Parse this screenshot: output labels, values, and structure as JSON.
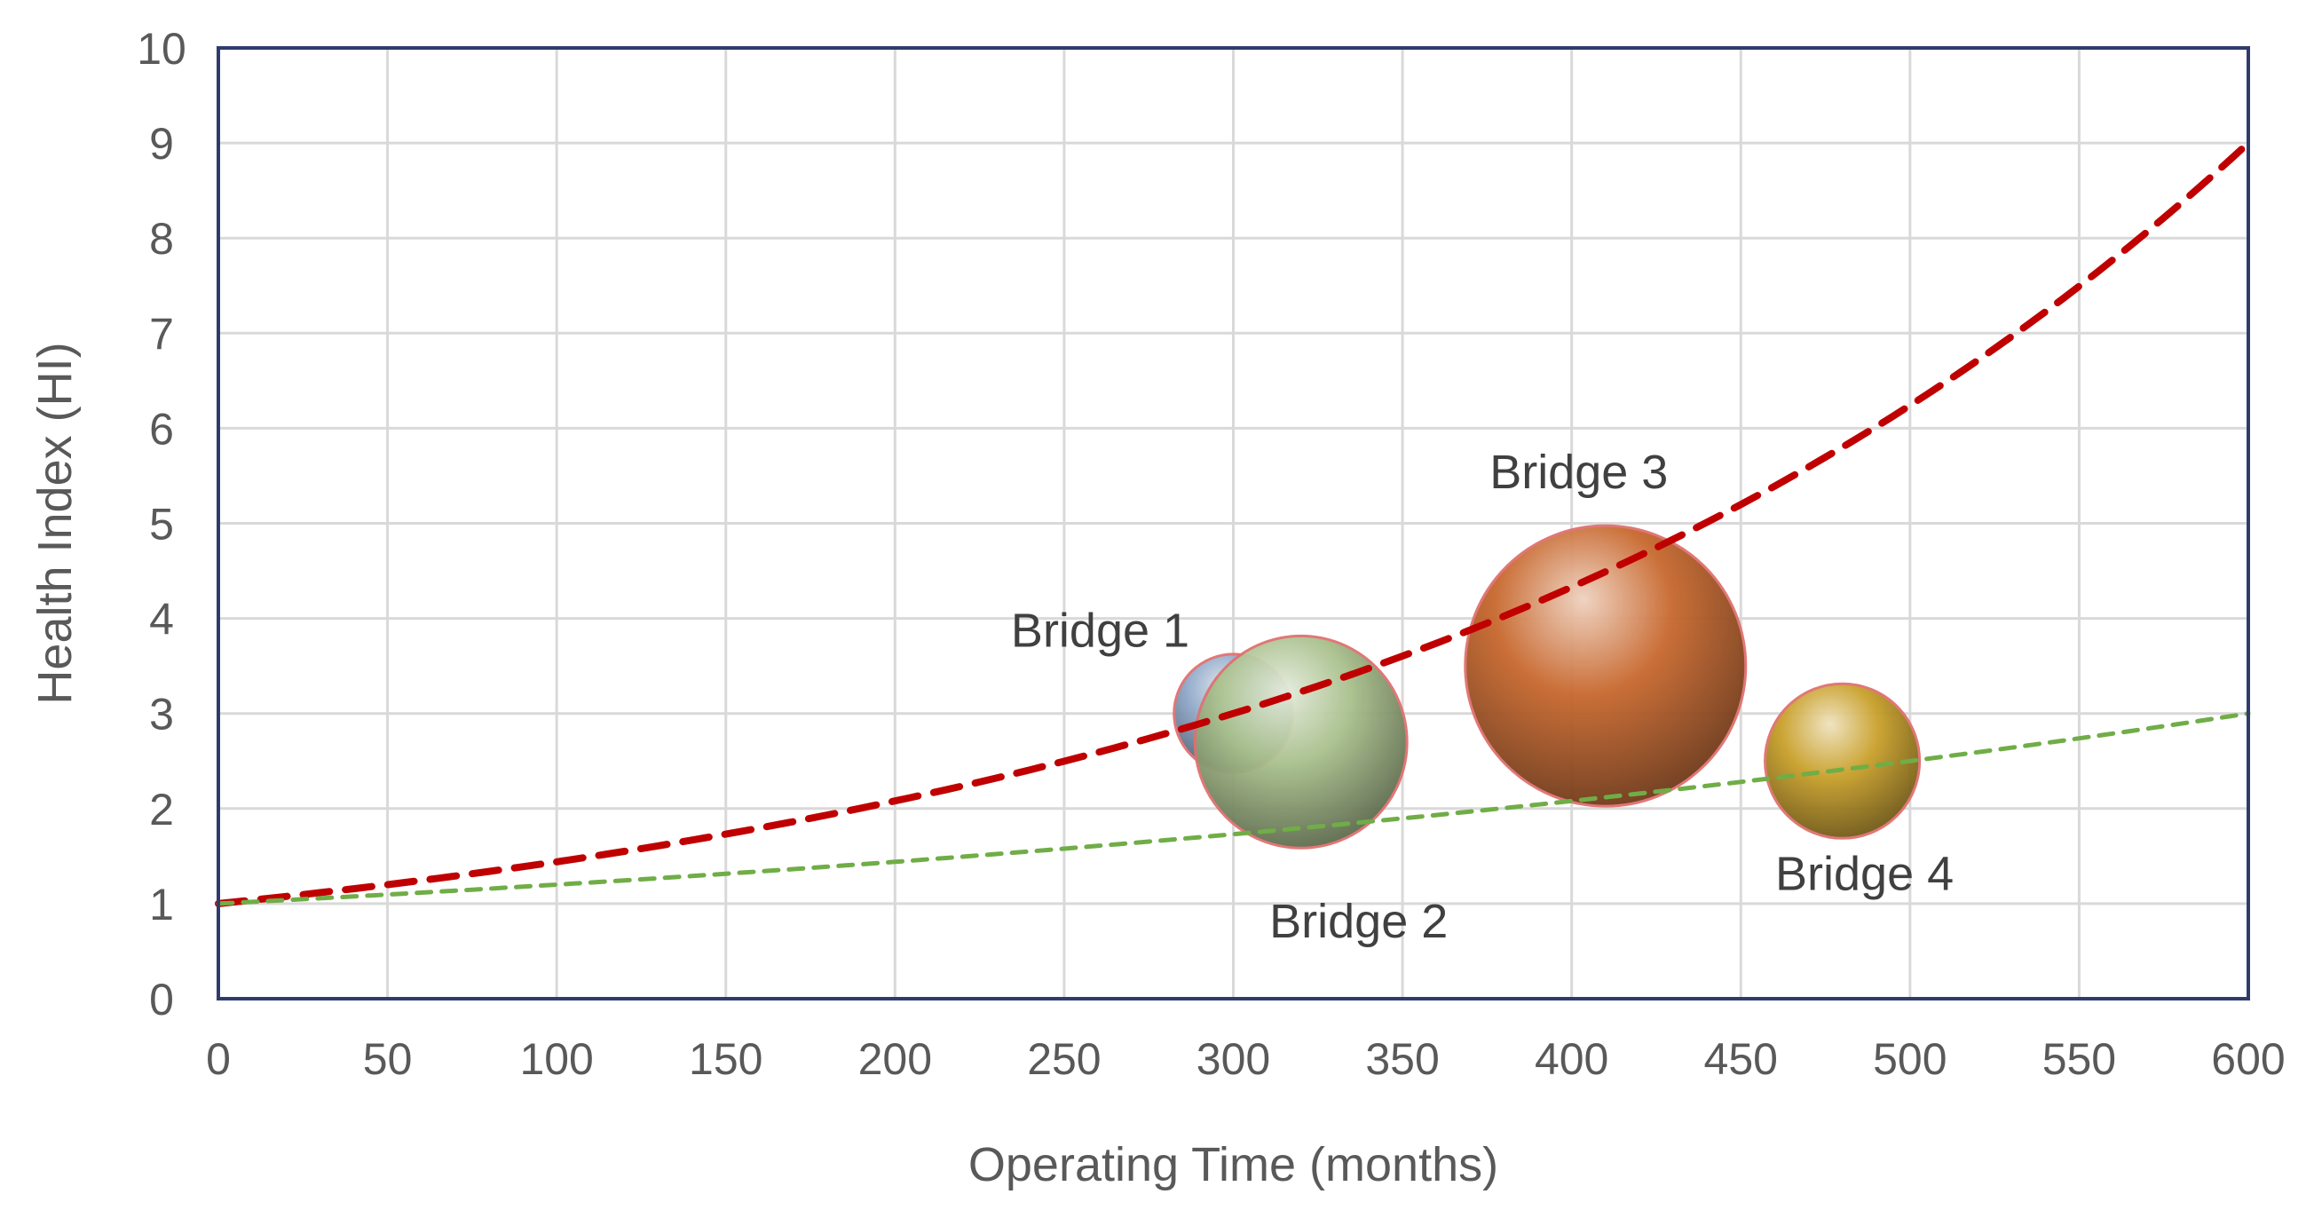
{
  "chart_data": {
    "type": "bubble",
    "title": "",
    "xlabel": "Operating Time (months)",
    "ylabel": "Health Index (HI)",
    "xlim": [
      0,
      600
    ],
    "ylim": [
      0,
      10
    ],
    "x_ticks": [
      0,
      50,
      100,
      150,
      200,
      250,
      300,
      350,
      400,
      450,
      500,
      550,
      600
    ],
    "y_ticks": [
      0,
      1,
      2,
      3,
      4,
      5,
      6,
      7,
      8,
      9,
      10
    ],
    "grid": true,
    "legend": "none",
    "bubbles": [
      {
        "label": "Bridge 1",
        "x": 300,
        "y": 3.0,
        "size": 1.0,
        "color": "#8FA8C8"
      },
      {
        "label": "Bridge 2",
        "x": 320,
        "y": 2.7,
        "size": 3.2,
        "color": "#A9C08C"
      },
      {
        "label": "Bridge 3",
        "x": 410,
        "y": 3.5,
        "size": 5.6,
        "color": "#C8682E"
      },
      {
        "label": "Bridge 4",
        "x": 480,
        "y": 2.5,
        "size": 1.7,
        "color": "#C9A02A"
      }
    ],
    "curves": [
      {
        "style": "dashed",
        "color": "#C00000",
        "x": [
          0,
          100,
          200,
          300,
          400,
          500,
          600
        ],
        "y": [
          1.0,
          1.44,
          2.08,
          3.0,
          4.33,
          6.24,
          9.0
        ]
      },
      {
        "style": "dashed",
        "color": "#70AD47",
        "x": [
          0,
          100,
          200,
          300,
          400,
          500,
          600
        ],
        "y": [
          1.0,
          1.2,
          1.44,
          1.73,
          2.08,
          2.5,
          3.0
        ]
      }
    ]
  }
}
